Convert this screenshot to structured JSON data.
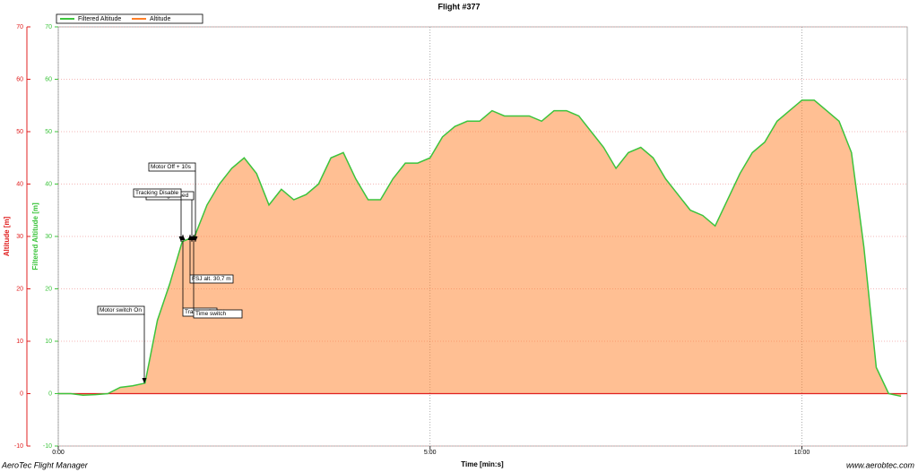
{
  "chart_data": {
    "type": "line",
    "title": "Flight #377",
    "x_label": "Time [min:s]",
    "y_label": "Altitude [m]",
    "y2_label": "Filtered Altitude [m]",
    "footer_left": "AeroTec Flight Manager",
    "footer_right": "www.aerobtec.com",
    "xlim": [
      0,
      685
    ],
    "xticks": [
      {
        "value": 0,
        "label": "0:00"
      },
      {
        "value": 300,
        "label": "5:00"
      },
      {
        "value": 600,
        "label": "10:00"
      }
    ],
    "ylim": [
      -10,
      70
    ],
    "yticks": [
      -10,
      0,
      10,
      20,
      30,
      40,
      50,
      60,
      70
    ],
    "y2lim": [
      -10,
      70
    ],
    "y2ticks": [
      -10,
      0,
      10,
      20,
      30,
      40,
      50,
      60,
      70
    ],
    "grid": true,
    "legend": "top-left",
    "x": [
      0,
      10,
      20,
      30,
      40,
      50,
      60,
      70,
      80,
      90,
      100,
      110,
      120,
      130,
      140,
      150,
      160,
      170,
      180,
      190,
      200,
      210,
      220,
      230,
      240,
      250,
      260,
      270,
      280,
      290,
      300,
      310,
      320,
      330,
      340,
      350,
      360,
      370,
      380,
      390,
      400,
      410,
      420,
      430,
      440,
      450,
      460,
      470,
      480,
      490,
      500,
      510,
      520,
      530,
      540,
      550,
      560,
      570,
      580,
      590,
      600,
      610,
      620,
      630,
      640,
      650,
      660,
      670,
      680
    ],
    "series": [
      {
        "name": "Filtered Altitude",
        "color": "#3cc43c",
        "axis": "y2",
        "values": [
          0,
          0,
          -0.3,
          -0.2,
          0,
          1.2,
          1.5,
          2,
          14,
          21,
          29,
          30,
          36,
          40,
          43,
          45,
          42,
          36,
          39,
          37,
          38,
          40,
          45,
          46,
          41,
          37,
          37,
          41,
          44,
          44,
          45,
          49,
          51,
          52,
          52,
          54,
          53,
          53,
          53,
          52,
          54,
          54,
          53,
          50,
          47,
          43,
          46,
          47,
          45,
          41,
          38,
          35,
          34,
          32,
          37,
          42,
          46,
          48,
          52,
          54,
          56,
          56,
          54,
          52,
          46,
          28,
          5,
          0,
          -0.5
        ]
      },
      {
        "name": "Altitude",
        "color": "#ff7f27",
        "values": [
          0,
          0,
          -0.3,
          -0.2,
          0,
          1.2,
          1.5,
          2,
          14,
          21,
          29,
          30,
          36,
          40,
          43,
          45,
          42,
          36,
          39,
          37,
          38,
          40,
          45,
          46,
          41,
          37,
          37,
          41,
          44,
          44,
          45,
          49,
          51,
          52,
          52,
          54,
          53,
          53,
          53,
          52,
          54,
          54,
          53,
          50,
          47,
          43,
          46,
          47,
          45,
          41,
          38,
          35,
          34,
          32,
          37,
          42,
          46,
          48,
          52,
          54,
          56,
          56,
          54,
          52,
          46,
          28,
          5,
          0,
          -0.5
        ]
      }
    ],
    "annotations": [
      "Motor switch On",
      "Tracking Armed",
      "Tracking Disable",
      "Motor Off + 10s",
      "FSJ alt. 30,7 m",
      "Time switch",
      "Tracking Disable"
    ]
  }
}
